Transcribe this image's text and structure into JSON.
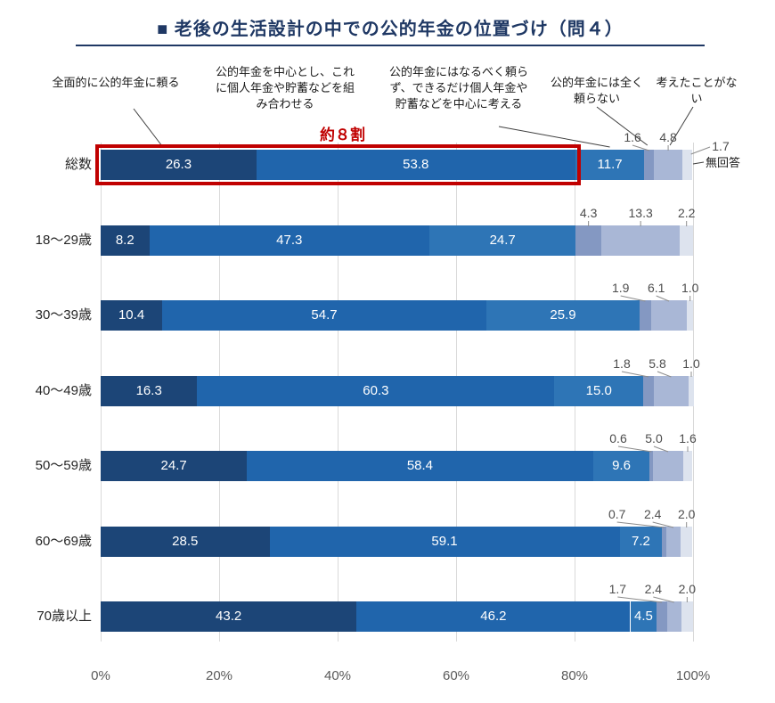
{
  "title": "■ 老後の生活設計の中での公的年金の位置づけ（問４）",
  "chart_data": {
    "type": "bar",
    "stacked": true,
    "orientation": "horizontal",
    "unit": "%",
    "title": "■ 老後の生活設計の中での公的年金の位置づけ（問４）",
    "categories": [
      "総数",
      "18〜29歳",
      "30〜39歳",
      "40〜49歳",
      "50〜59歳",
      "60〜69歳",
      "70歳以上"
    ],
    "series": [
      {
        "name": "全面的に公的年金に頼る",
        "color": "#1c4577",
        "values": [
          26.3,
          8.2,
          10.4,
          16.3,
          24.7,
          28.5,
          43.2
        ]
      },
      {
        "name": "公的年金を中心とし、これに個人年金や貯蓄などを組み合わせる",
        "color": "#2065ac",
        "values": [
          53.8,
          47.3,
          54.7,
          60.3,
          58.4,
          59.1,
          46.2
        ]
      },
      {
        "name": "公的年金にはなるべく頼らず、できるだけ個人年金や貯蓄などを中心に考える",
        "color": "#2e75b6",
        "values": [
          11.7,
          24.7,
          25.9,
          15.0,
          9.6,
          7.2,
          4.5
        ]
      },
      {
        "name": "公的年金には全く頼らない",
        "color": "#8498c2",
        "values": [
          1.6,
          4.3,
          1.9,
          1.8,
          0.6,
          0.7,
          1.7
        ]
      },
      {
        "name": "考えたことがない",
        "color": "#a9b7d6",
        "values": [
          4.8,
          13.3,
          6.1,
          5.8,
          5.0,
          2.4,
          2.4
        ]
      },
      {
        "name": "無回答",
        "color": "#dde3ee",
        "values": [
          1.7,
          2.2,
          1.0,
          1.0,
          1.6,
          2.0,
          2.0
        ]
      }
    ],
    "x_ticks": [
      "0%",
      "20%",
      "40%",
      "60%",
      "80%",
      "100%"
    ],
    "xlim": [
      0,
      100
    ],
    "grid": true,
    "legend_position": "top-annotations-with-leader-lines",
    "highlight": {
      "category": "総数",
      "segments": [
        0,
        1
      ],
      "label": "約８割",
      "color": "#c00000"
    }
  }
}
